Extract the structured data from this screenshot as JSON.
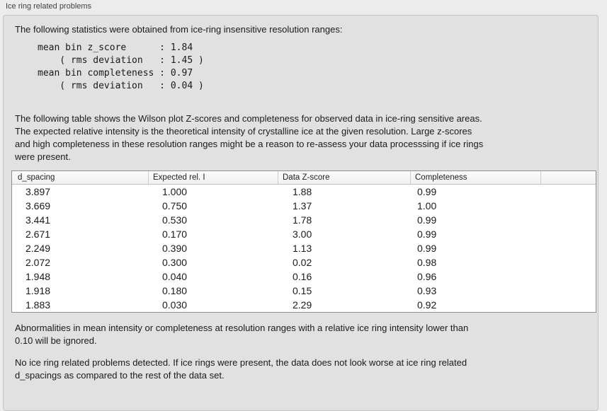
{
  "panel": {
    "title": "Ice ring related problems"
  },
  "intro_text": "The following statistics were obtained from ice-ring insensitive resolution ranges:",
  "stats_block": "mean bin z_score      : 1.84\n    ( rms deviation   : 1.45 )\nmean bin completeness : 0.97\n    ( rms deviation   : 0.04 )",
  "stats": {
    "mean_bin_z_score": "1.84",
    "z_score_rms_deviation": "1.45",
    "mean_bin_completeness": "0.97",
    "completeness_rms_deviation": "0.04"
  },
  "table_description": "The following table shows the Wilson plot Z-scores and completeness for observed data in ice-ring sensitive areas.\nThe expected relative intensity is the theoretical intensity of crystalline ice at the given resolution. Large z-scores\nand high completeness in these resolution ranges might be a reason to re-assess your data processsing if ice rings\nwere present.",
  "table": {
    "headers": [
      "d_spacing",
      "Expected rel. I",
      "Data Z-score",
      "Completeness",
      ""
    ],
    "rows": [
      [
        "3.897",
        "1.000",
        "1.88",
        "0.99"
      ],
      [
        "3.669",
        "0.750",
        "1.37",
        "1.00"
      ],
      [
        "3.441",
        "0.530",
        "1.78",
        "0.99"
      ],
      [
        "2.671",
        "0.170",
        "3.00",
        "0.99"
      ],
      [
        "2.249",
        "0.390",
        "1.13",
        "0.99"
      ],
      [
        "2.072",
        "0.300",
        "0.02",
        "0.98"
      ],
      [
        "1.948",
        "0.040",
        "0.16",
        "0.96"
      ],
      [
        "1.918",
        "0.180",
        "0.15",
        "0.93"
      ],
      [
        "1.883",
        "0.030",
        "2.29",
        "0.92"
      ]
    ]
  },
  "note_text": "Abnormalities in mean intensity or completeness at resolution ranges with a relative ice ring intensity lower than\n0.10 will be ignored.",
  "conclusion_text": "No ice ring related problems detected. If ice rings were present, the data does not look worse at ice ring related\nd_spacings as compared to the rest of the data set."
}
